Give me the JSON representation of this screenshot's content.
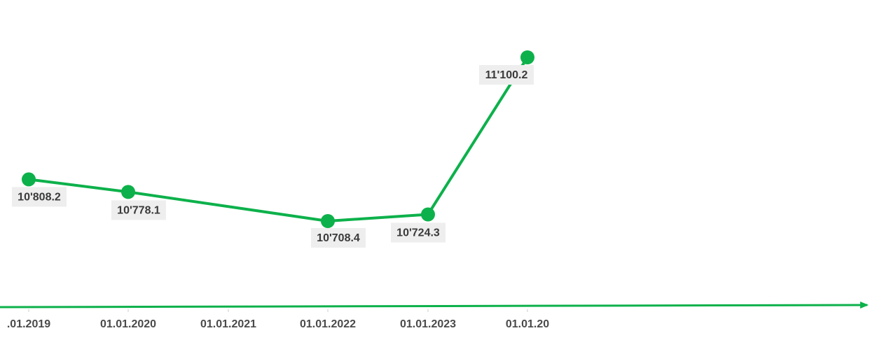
{
  "chart_data": {
    "type": "line",
    "title": "",
    "xlabel": "",
    "ylabel": "",
    "grid": false,
    "legend": "none",
    "tick_labels": [
      ".01.2019",
      "01.01.2020",
      "01.01.2021",
      "01.01.2022",
      "01.01.2023",
      "01.01.20"
    ],
    "x": [
      "2019-01-01",
      "2020-01-01",
      "2022-01-01",
      "2023-01-01",
      "2024-01-01"
    ],
    "values": [
      10808.2,
      10778.1,
      10708.4,
      10724.3,
      11100.2
    ],
    "data_labels": [
      "10'808.2",
      "10'778.1",
      "10'708.4",
      "10'724.3",
      "11'100.2"
    ],
    "colors": {
      "series": "#0db14b",
      "axis": "#0db14b",
      "label_background": "#eeeeee",
      "label_text": "#3a3a3a",
      "tick_text": "#4a4a4a"
    }
  }
}
